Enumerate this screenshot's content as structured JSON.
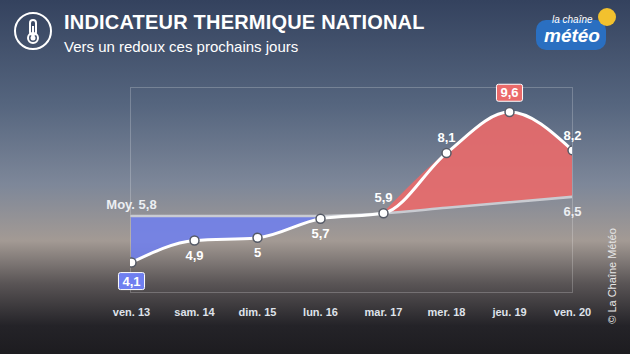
{
  "chart_data": {
    "type": "line",
    "title": "INDICATEUR THERMIQUE NATIONAL",
    "subtitle": "Vers un redoux ces prochains jours",
    "logo": [
      "la chaîne",
      "météo"
    ],
    "credit": "© La Chaîne Météo",
    "categories": [
      "ven. 13",
      "sam. 14",
      "dim. 15",
      "lun. 16",
      "mar. 17",
      "mer. 18",
      "jeu. 19",
      "ven. 20"
    ],
    "series": [
      {
        "color": "#ffffff",
        "marker": "circle",
        "line_style": "solid",
        "values": [
          4.1,
          4.9,
          5,
          5.7,
          5.9,
          8.1,
          9.6,
          8.2
        ],
        "value_labels": [
          "4,1",
          "4,9",
          "5",
          "5,7",
          "5,9",
          "8,1",
          "9,6",
          "8,2"
        ]
      },
      {
        "name": "Moy.",
        "color": "#c9cbd1",
        "line_style": "solid",
        "values": [
          5.8,
          5.8,
          5.8,
          5.8,
          5.9,
          6.1,
          6.3,
          6.5
        ],
        "value_labels": [
          "5,8",
          null,
          null,
          null,
          null,
          null,
          null,
          "6,5"
        ]
      }
    ],
    "ylim": [
      3,
      10.5
    ],
    "yticks": [],
    "grid": false,
    "data_labels": true,
    "tick_labels": "x"
  }
}
